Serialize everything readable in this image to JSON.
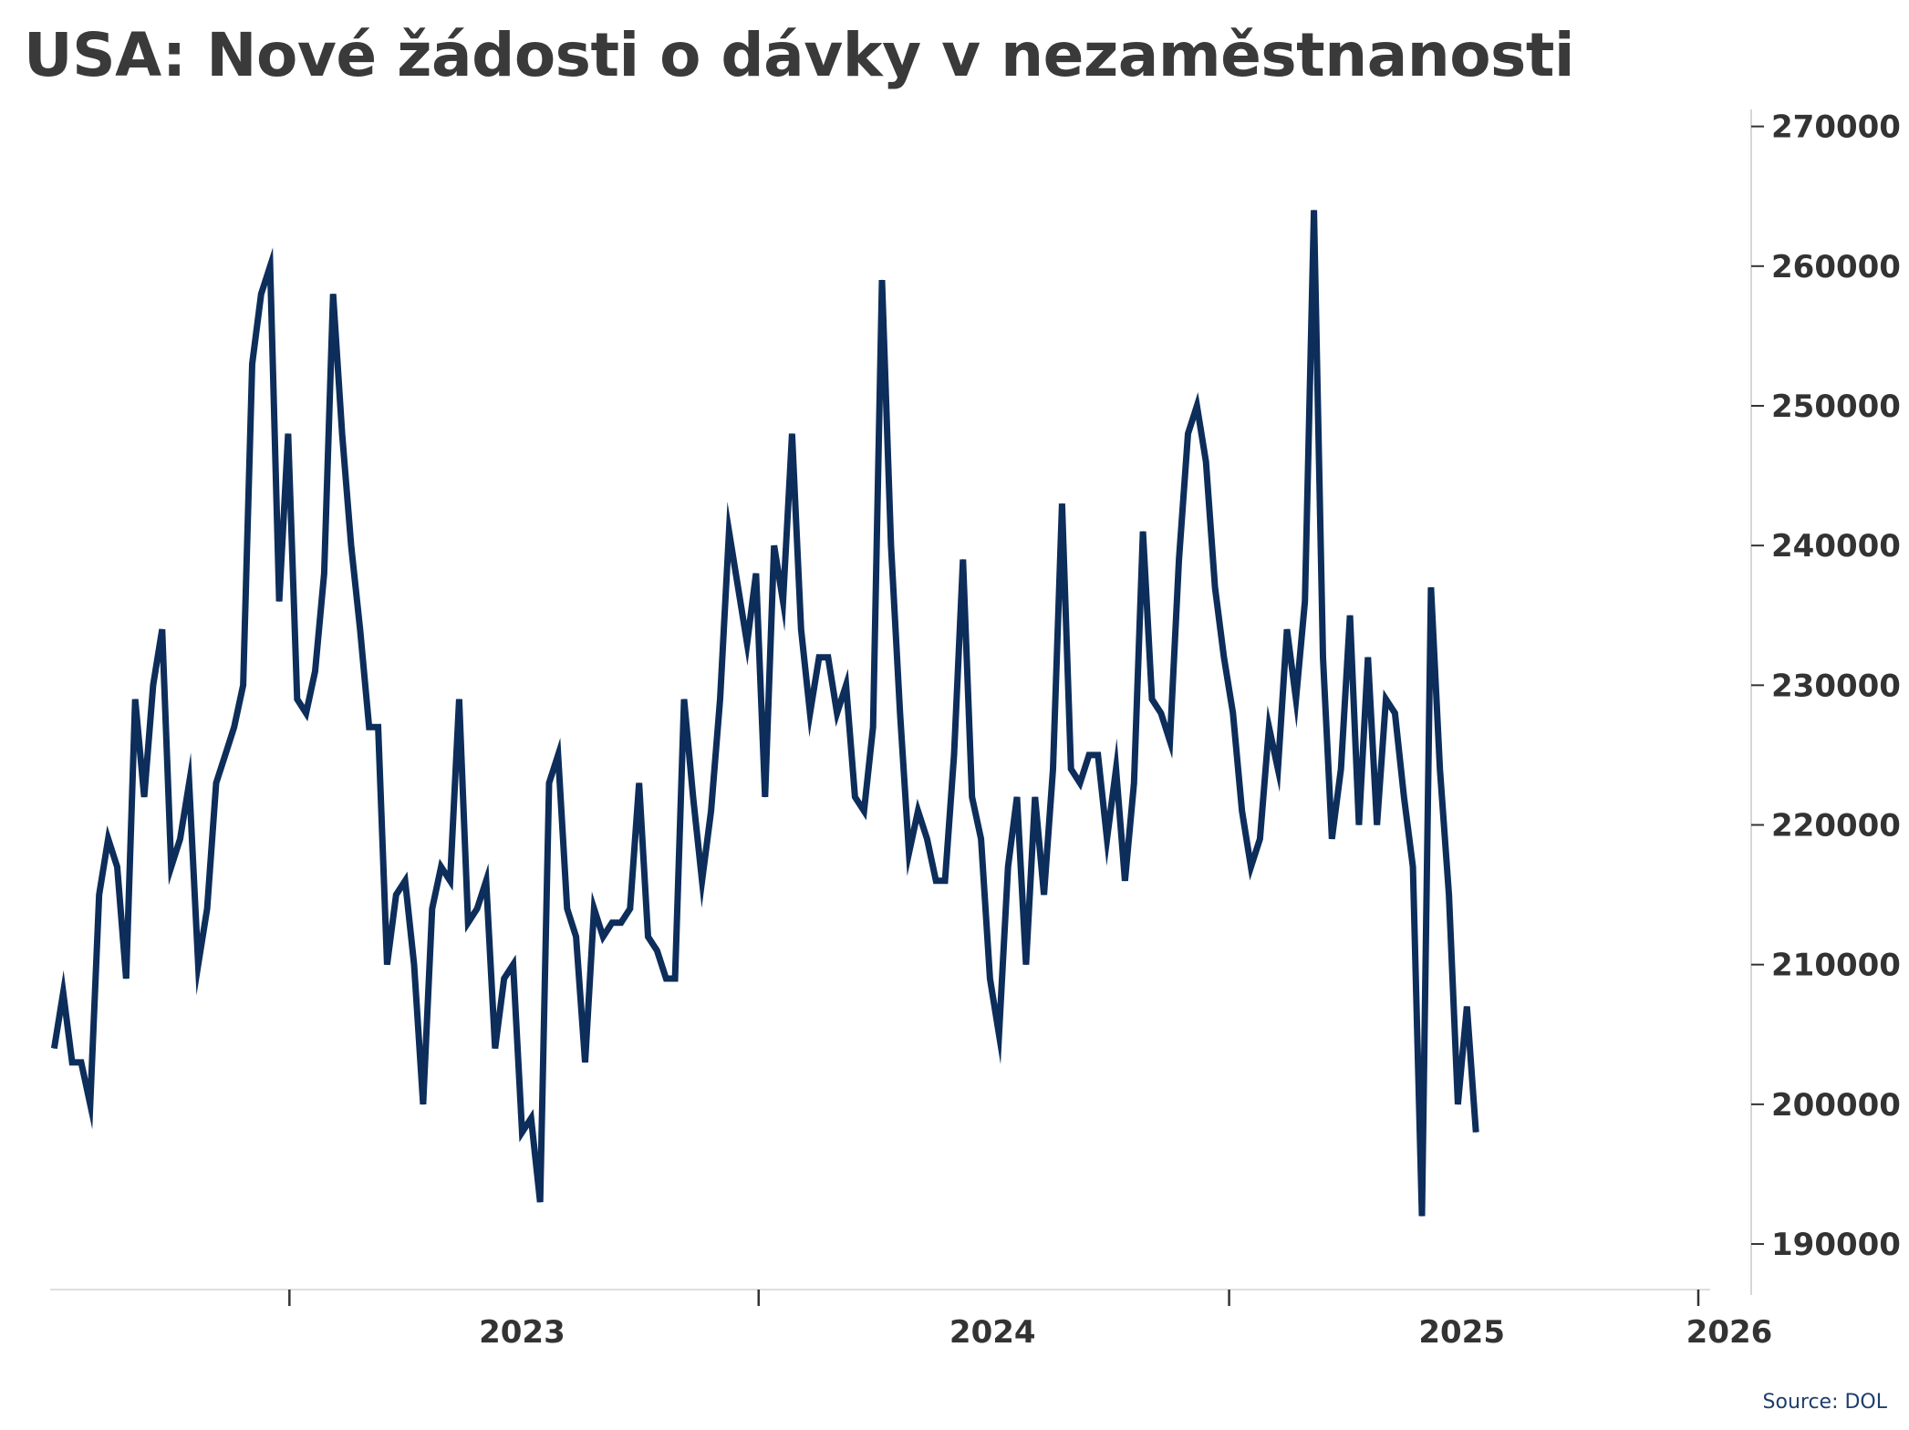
{
  "title": "USA: Nové žádosti o dávky v nezaměstnanosti",
  "source": "Source: DOL",
  "colors": {
    "line": "#0d2d5a",
    "axis": "#333333",
    "text": "#3a3a3a"
  },
  "chart_data": {
    "type": "line",
    "title": "USA: Nové žádosti o dávky v nezaměstnanosti",
    "xlabel": "",
    "ylabel": "",
    "x_ticks": [
      "2023",
      "2024",
      "2025",
      "2026"
    ],
    "y_ticks": [
      190000,
      200000,
      210000,
      220000,
      230000,
      240000,
      250000,
      260000,
      270000
    ],
    "ylim": [
      187000,
      272000
    ],
    "x_range": [
      "2022-07-01",
      "2026-01-01"
    ],
    "y_axis_side": "right",
    "grid": false,
    "legend": "none",
    "series": [
      {
        "x_start": "2022-07-02",
        "frequency": "weekly",
        "values": [
          204000,
          208000,
          203000,
          203000,
          200000,
          215000,
          219000,
          217000,
          209000,
          229000,
          222000,
          230000,
          234000,
          217000,
          219000,
          223000,
          210000,
          214000,
          223000,
          225000,
          227000,
          230000,
          253000,
          258000,
          260000,
          236000,
          248000,
          229000,
          228000,
          231000,
          238000,
          258000,
          248000,
          240000,
          234000,
          227000,
          227000,
          210000,
          215000,
          216000,
          210000,
          200000,
          214000,
          217000,
          216000,
          229000,
          213000,
          214000,
          216000,
          204000,
          209000,
          210000,
          198000,
          199000,
          193000,
          223000,
          225000,
          214000,
          212000,
          203000,
          214000,
          212000,
          213000,
          213000,
          214000,
          223000,
          212000,
          211000,
          209000,
          209000,
          229000,
          222000,
          216000,
          221000,
          229000,
          241000,
          237000,
          233000,
          238000,
          222000,
          240000,
          236000,
          248000,
          234000,
          228000,
          232000,
          232000,
          228000,
          230000,
          222000,
          221000,
          227000,
          259000,
          240000,
          228000,
          218000,
          221000,
          219000,
          216000,
          216000,
          225000,
          239000,
          222000,
          219000,
          209000,
          205000,
          217000,
          222000,
          210000,
          222000,
          215000,
          224000,
          243000,
          224000,
          223000,
          225000,
          225000,
          219000,
          224000,
          216000,
          223000,
          241000,
          229000,
          228000,
          226000,
          239000,
          248000,
          250000,
          246000,
          237000,
          232000,
          228000,
          221000,
          217000,
          219000,
          227000,
          224000,
          234000,
          229000,
          236000,
          264000,
          232000,
          219000,
          224000,
          235000,
          220000,
          232000,
          220000,
          229000,
          228000,
          222000,
          217000,
          192000,
          237000,
          224000,
          215000,
          200000,
          207000,
          198000
        ]
      }
    ]
  }
}
